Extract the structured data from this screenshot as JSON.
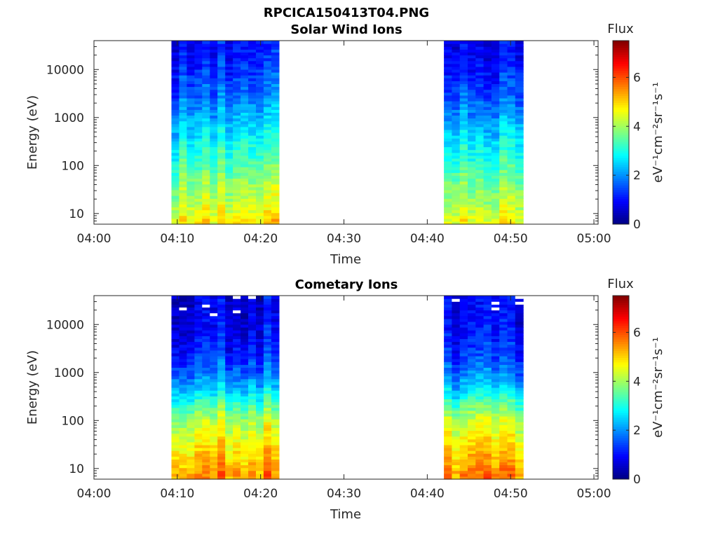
{
  "figure": {
    "title": "RPCICA150413T04.PNG"
  },
  "colorbar": {
    "label_top": "Flux",
    "unit_label": "eV⁻¹cm⁻²sr⁻¹s⁻¹",
    "range": [
      0,
      7.5
    ],
    "tick_labels": [
      "0",
      "2",
      "4",
      "6"
    ],
    "tick_values": [
      0,
      2,
      4,
      6
    ],
    "colormap": "jet"
  },
  "chart_data": [
    {
      "type": "heatmap",
      "title": "Solar Wind Ions",
      "xlabel": "Time",
      "ylabel": "Energy (eV)",
      "x_tick_labels": [
        "04:00",
        "04:10",
        "04:20",
        "04:30",
        "04:40",
        "04:50",
        "05:00"
      ],
      "x_tick_minutes": [
        0,
        10,
        20,
        30,
        40,
        50,
        60
      ],
      "xlim_minutes": [
        0,
        60.5
      ],
      "y_scale": "log",
      "y_tick_labels": [
        "10",
        "100",
        "1000",
        "10000"
      ],
      "y_tick_values": [
        10,
        100,
        1000,
        10000
      ],
      "ylim": [
        6,
        40000
      ],
      "data_intervals_minutes": [
        [
          9.3,
          22.2
        ],
        [
          42.0,
          51.5
        ]
      ],
      "flux_profile": {
        "energy_eV": [
          7,
          15,
          40,
          100,
          300,
          1000,
          3000,
          10000,
          30000
        ],
        "flux": [
          4.8,
          4.3,
          3.9,
          3.4,
          2.9,
          2.3,
          1.7,
          1.3,
          1.0
        ]
      }
    },
    {
      "type": "heatmap",
      "title": "Cometary Ions",
      "xlabel": "Time",
      "ylabel": "Energy (eV)",
      "x_tick_labels": [
        "04:00",
        "04:10",
        "04:20",
        "04:30",
        "04:40",
        "04:50",
        "05:00"
      ],
      "x_tick_minutes": [
        0,
        10,
        20,
        30,
        40,
        50,
        60
      ],
      "xlim_minutes": [
        0,
        60.5
      ],
      "y_scale": "log",
      "y_tick_labels": [
        "10",
        "100",
        "1000",
        "10000"
      ],
      "y_tick_values": [
        10,
        100,
        1000,
        10000
      ],
      "ylim": [
        6,
        40000
      ],
      "data_intervals_minutes": [
        [
          9.3,
          22.2
        ],
        [
          42.0,
          51.5
        ]
      ],
      "flux_profile": {
        "energy_eV": [
          7,
          15,
          40,
          100,
          200,
          400,
          1000,
          3000,
          10000,
          30000
        ],
        "flux": [
          5.6,
          5.2,
          4.7,
          4.2,
          3.5,
          2.6,
          1.8,
          1.2,
          0.9,
          0.8
        ]
      }
    }
  ]
}
